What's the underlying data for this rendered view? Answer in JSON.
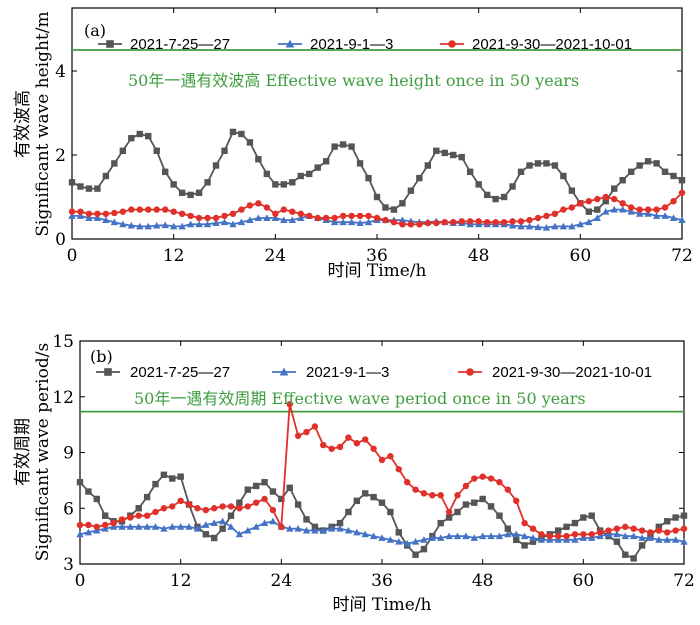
{
  "chart_data": [
    {
      "type": "line",
      "panel_label": "(a)",
      "xlabel": "时间 Time/h",
      "ylabel_cn": "有效波高",
      "ylabel_en": "Significant wave height/m",
      "xlim": [
        0,
        72
      ],
      "ylim": [
        0,
        5.5
      ],
      "xticks": [
        0,
        12,
        24,
        36,
        48,
        60,
        72
      ],
      "yticks": [
        0,
        2,
        4
      ],
      "reference_line": {
        "y": 4.5,
        "label": "50年一遇有效波高 Effective wave height once in 50 years",
        "color": "#3f9d3f"
      },
      "series": [
        {
          "name": "2021-7-25—27",
          "color": "#555555",
          "marker": "square",
          "x": [
            0,
            1,
            2,
            3,
            4,
            5,
            6,
            7,
            8,
            9,
            10,
            11,
            12,
            13,
            14,
            15,
            16,
            17,
            18,
            19,
            20,
            21,
            22,
            23,
            24,
            25,
            26,
            27,
            28,
            29,
            30,
            31,
            32,
            33,
            34,
            35,
            36,
            37,
            38,
            39,
            40,
            41,
            42,
            43,
            44,
            45,
            46,
            47,
            48,
            49,
            50,
            51,
            52,
            53,
            54,
            55,
            56,
            57,
            58,
            59,
            60,
            61,
            62,
            63,
            64,
            65,
            66,
            67,
            68,
            69,
            70,
            71,
            72
          ],
          "y": [
            1.35,
            1.25,
            1.2,
            1.2,
            1.5,
            1.8,
            2.1,
            2.4,
            2.5,
            2.45,
            2.1,
            1.6,
            1.3,
            1.1,
            1.05,
            1.1,
            1.35,
            1.75,
            2.1,
            2.55,
            2.5,
            2.3,
            1.9,
            1.55,
            1.3,
            1.3,
            1.35,
            1.5,
            1.55,
            1.7,
            1.85,
            2.2,
            2.25,
            2.2,
            1.8,
            1.45,
            1.0,
            0.75,
            0.7,
            0.85,
            1.15,
            1.45,
            1.75,
            2.1,
            2.05,
            2.0,
            1.95,
            1.6,
            1.3,
            1.05,
            0.95,
            1.0,
            1.25,
            1.6,
            1.75,
            1.8,
            1.8,
            1.75,
            1.5,
            1.15,
            0.85,
            0.65,
            0.7,
            0.9,
            1.2,
            1.4,
            1.6,
            1.75,
            1.85,
            1.8,
            1.6,
            1.5,
            1.4
          ]
        },
        {
          "name": "2021-9-1—3",
          "color": "#4472c4",
          "marker": "triangle",
          "x": [
            0,
            1,
            2,
            3,
            4,
            5,
            6,
            7,
            8,
            9,
            10,
            11,
            12,
            13,
            14,
            15,
            16,
            17,
            18,
            19,
            20,
            21,
            22,
            23,
            24,
            25,
            26,
            27,
            28,
            29,
            30,
            31,
            32,
            33,
            34,
            35,
            36,
            37,
            38,
            39,
            40,
            41,
            42,
            43,
            44,
            45,
            46,
            47,
            48,
            49,
            50,
            51,
            52,
            53,
            54,
            55,
            56,
            57,
            58,
            59,
            60,
            61,
            62,
            63,
            64,
            65,
            66,
            67,
            68,
            69,
            70,
            71,
            72
          ],
          "y": [
            0.55,
            0.55,
            0.5,
            0.5,
            0.45,
            0.4,
            0.35,
            0.32,
            0.3,
            0.3,
            0.32,
            0.33,
            0.3,
            0.3,
            0.35,
            0.35,
            0.35,
            0.38,
            0.4,
            0.35,
            0.4,
            0.45,
            0.5,
            0.5,
            0.5,
            0.45,
            0.45,
            0.5,
            0.55,
            0.5,
            0.45,
            0.4,
            0.4,
            0.4,
            0.38,
            0.4,
            0.45,
            0.45,
            0.45,
            0.45,
            0.42,
            0.4,
            0.4,
            0.42,
            0.4,
            0.38,
            0.38,
            0.35,
            0.35,
            0.35,
            0.35,
            0.35,
            0.32,
            0.3,
            0.3,
            0.28,
            0.27,
            0.3,
            0.3,
            0.3,
            0.35,
            0.4,
            0.5,
            0.65,
            0.7,
            0.7,
            0.65,
            0.6,
            0.6,
            0.55,
            0.55,
            0.5,
            0.45
          ]
        },
        {
          "name": "2021-9-30—2021-10-01",
          "color": "#e0302a",
          "marker": "circle",
          "x": [
            0,
            1,
            2,
            3,
            4,
            5,
            6,
            7,
            8,
            9,
            10,
            11,
            12,
            13,
            14,
            15,
            16,
            17,
            18,
            19,
            20,
            21,
            22,
            23,
            24,
            25,
            26,
            27,
            28,
            29,
            30,
            31,
            32,
            33,
            34,
            35,
            36,
            37,
            38,
            39,
            40,
            41,
            42,
            43,
            44,
            45,
            46,
            47,
            48,
            49,
            50,
            51,
            52,
            53,
            54,
            55,
            56,
            57,
            58,
            59,
            60,
            61,
            62,
            63,
            64,
            65,
            66,
            67,
            68,
            69,
            70,
            71,
            72
          ],
          "y": [
            0.65,
            0.65,
            0.6,
            0.6,
            0.6,
            0.62,
            0.65,
            0.7,
            0.7,
            0.7,
            0.7,
            0.7,
            0.65,
            0.6,
            0.55,
            0.5,
            0.5,
            0.5,
            0.55,
            0.6,
            0.7,
            0.8,
            0.85,
            0.75,
            0.6,
            0.7,
            0.65,
            0.6,
            0.55,
            0.5,
            0.5,
            0.5,
            0.55,
            0.55,
            0.55,
            0.55,
            0.5,
            0.45,
            0.4,
            0.35,
            0.35,
            0.35,
            0.38,
            0.38,
            0.4,
            0.4,
            0.42,
            0.42,
            0.42,
            0.4,
            0.4,
            0.4,
            0.42,
            0.42,
            0.45,
            0.5,
            0.55,
            0.6,
            0.7,
            0.75,
            0.85,
            0.9,
            0.95,
            1.0,
            0.95,
            0.85,
            0.75,
            0.7,
            0.7,
            0.7,
            0.75,
            0.9,
            1.1
          ]
        }
      ]
    },
    {
      "type": "line",
      "panel_label": "(b)",
      "xlabel": "时间 Time/h",
      "ylabel_cn": "有效周期",
      "ylabel_en": "Significant wave period/s",
      "xlim": [
        0,
        72
      ],
      "ylim": [
        3,
        15
      ],
      "xticks": [
        0,
        12,
        24,
        36,
        48,
        60,
        72
      ],
      "yticks": [
        3,
        6,
        9,
        12,
        15
      ],
      "reference_line": {
        "y": 11.2,
        "label": "50年一遇有效周期 Effective wave period once in 50 years",
        "color": "#3f9d3f"
      },
      "series": [
        {
          "name": "2021-7-25—27",
          "color": "#555555",
          "marker": "square",
          "x": [
            0,
            1,
            2,
            3,
            4,
            5,
            6,
            7,
            8,
            9,
            10,
            11,
            12,
            13,
            14,
            15,
            16,
            17,
            18,
            19,
            20,
            21,
            22,
            23,
            24,
            25,
            26,
            27,
            28,
            29,
            30,
            31,
            32,
            33,
            34,
            35,
            36,
            37,
            38,
            39,
            40,
            41,
            42,
            43,
            44,
            45,
            46,
            47,
            48,
            49,
            50,
            51,
            52,
            53,
            54,
            55,
            56,
            57,
            58,
            59,
            60,
            61,
            62,
            63,
            64,
            65,
            66,
            67,
            68,
            69,
            70,
            71,
            72
          ],
          "y": [
            7.4,
            6.9,
            6.5,
            5.6,
            5.3,
            5.3,
            5.6,
            6.0,
            6.6,
            7.3,
            7.8,
            7.6,
            7.7,
            6.2,
            5.0,
            4.6,
            4.4,
            4.9,
            5.6,
            6.3,
            7.0,
            7.2,
            7.4,
            6.9,
            6.5,
            7.1,
            6.2,
            5.4,
            5.0,
            4.8,
            5.0,
            5.2,
            5.8,
            6.4,
            6.8,
            6.6,
            6.3,
            5.8,
            4.7,
            4.0,
            3.5,
            3.8,
            4.5,
            5.2,
            5.5,
            5.8,
            6.2,
            6.3,
            6.5,
            6.1,
            5.6,
            4.9,
            4.3,
            4.0,
            4.2,
            4.4,
            4.6,
            4.8,
            5.0,
            5.2,
            5.5,
            5.6,
            4.8,
            4.5,
            4.2,
            3.5,
            3.3,
            4.0,
            4.5,
            5.0,
            5.3,
            5.5,
            5.6
          ]
        },
        {
          "name": "2021-9-1—3",
          "color": "#4472c4",
          "marker": "triangle",
          "x": [
            0,
            1,
            2,
            3,
            4,
            5,
            6,
            7,
            8,
            9,
            10,
            11,
            12,
            13,
            14,
            15,
            16,
            17,
            18,
            19,
            20,
            21,
            22,
            23,
            24,
            25,
            26,
            27,
            28,
            29,
            30,
            31,
            32,
            33,
            34,
            35,
            36,
            37,
            38,
            39,
            40,
            41,
            42,
            43,
            44,
            45,
            46,
            47,
            48,
            49,
            50,
            51,
            52,
            53,
            54,
            55,
            56,
            57,
            58,
            59,
            60,
            61,
            62,
            63,
            64,
            65,
            66,
            67,
            68,
            69,
            70,
            71,
            72
          ],
          "y": [
            4.6,
            4.7,
            4.8,
            4.9,
            5.0,
            5.0,
            5.0,
            5.0,
            5.0,
            5.0,
            4.9,
            5.0,
            5.0,
            5.0,
            4.9,
            5.1,
            5.2,
            5.3,
            5.0,
            4.6,
            4.8,
            5.0,
            5.2,
            5.3,
            5.0,
            4.9,
            4.9,
            4.8,
            4.8,
            4.8,
            4.9,
            4.9,
            4.8,
            4.7,
            4.6,
            4.5,
            4.4,
            4.3,
            4.2,
            4.1,
            4.2,
            4.3,
            4.4,
            4.4,
            4.5,
            4.5,
            4.5,
            4.4,
            4.5,
            4.5,
            4.5,
            4.6,
            4.6,
            4.5,
            4.4,
            4.3,
            4.3,
            4.3,
            4.3,
            4.3,
            4.4,
            4.4,
            4.5,
            4.6,
            4.6,
            4.5,
            4.5,
            4.4,
            4.4,
            4.3,
            4.3,
            4.3,
            4.2
          ]
        },
        {
          "name": "2021-9-30—2021-10-01",
          "color": "#e0302a",
          "marker": "circle",
          "x": [
            0,
            1,
            2,
            3,
            4,
            5,
            6,
            7,
            8,
            9,
            10,
            11,
            12,
            13,
            14,
            15,
            16,
            17,
            18,
            19,
            20,
            21,
            22,
            23,
            24,
            25,
            26,
            27,
            28,
            29,
            30,
            31,
            32,
            33,
            34,
            35,
            36,
            37,
            38,
            39,
            40,
            41,
            42,
            43,
            44,
            45,
            46,
            47,
            48,
            49,
            50,
            51,
            52,
            53,
            54,
            55,
            56,
            57,
            58,
            59,
            60,
            61,
            62,
            63,
            64,
            65,
            66,
            67,
            68,
            69,
            70,
            71,
            72
          ],
          "y": [
            5.1,
            5.1,
            5.0,
            5.1,
            5.2,
            5.4,
            5.5,
            5.6,
            5.6,
            5.8,
            6.0,
            6.1,
            6.4,
            6.2,
            6.0,
            5.9,
            6.0,
            6.1,
            6.1,
            6.0,
            6.1,
            6.3,
            6.5,
            5.9,
            5.0,
            11.6,
            9.9,
            10.1,
            10.4,
            9.4,
            9.2,
            9.3,
            9.8,
            9.5,
            9.7,
            9.2,
            8.6,
            8.8,
            8.1,
            7.4,
            7.0,
            6.8,
            6.7,
            6.7,
            5.8,
            6.7,
            7.2,
            7.6,
            7.7,
            7.6,
            7.4,
            7.0,
            6.4,
            5.2,
            4.9,
            4.6,
            4.5,
            4.5,
            4.5,
            4.6,
            4.6,
            4.6,
            4.7,
            4.8,
            4.9,
            5.0,
            4.9,
            4.8,
            4.7,
            4.8,
            4.7,
            4.8,
            4.9
          ]
        }
      ]
    }
  ]
}
